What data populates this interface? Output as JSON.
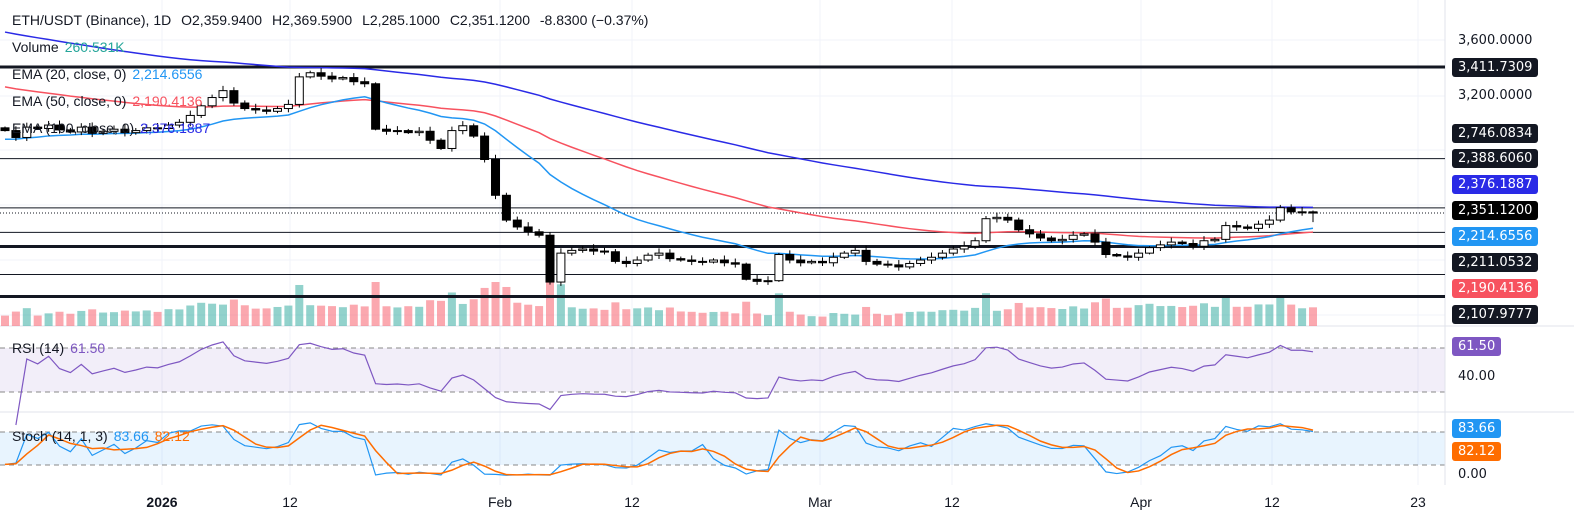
{
  "header": {
    "symbol": "ETH/USDT (Binance), 1D",
    "open": "O2,359.9400",
    "high": "H2,369.5900",
    "low": "L2,285.1000",
    "close": "C2,351.1200",
    "change": "-8.8300 (−0.37%)"
  },
  "legend": {
    "volume": {
      "label": "Volume",
      "value": "260.531K",
      "color": "#26a69a"
    },
    "ema20": {
      "label": "EMA (20, close, 0)",
      "value": "2,214.6556",
      "color": "#2196f3"
    },
    "ema50": {
      "label": "EMA (50, close, 0)",
      "value": "2,190.4136",
      "color": "#f7525f"
    },
    "ema100": {
      "label": "EMA (100, close, 0)",
      "value": "2,376.1887",
      "color": "#2a2ae6"
    },
    "rsi": {
      "label": "RSI (14)",
      "value": "61.50",
      "color": "#7e57c2"
    },
    "stoch": {
      "label": "Stoch (14, 1, 3)",
      "k": "83.66",
      "d": "82.12",
      "k_color": "#2196f3",
      "d_color": "#ff6d00"
    }
  },
  "price_axis": {
    "ticks": [
      "3,600.0000",
      "3,200.0000"
    ],
    "tags": [
      {
        "text": "3,411.7309",
        "bg": "#131722"
      },
      {
        "text": "2,746.0834",
        "bg": "#131722"
      },
      {
        "text": "2,388.6060",
        "bg": "#131722"
      },
      {
        "text": "2,376.1887",
        "bg": "#2a2ae6"
      },
      {
        "text": "2,351.1200",
        "bg": "#000000"
      },
      {
        "text": "2,214.6556",
        "bg": "#2196f3"
      },
      {
        "text": "2,211.0532",
        "bg": "#131722"
      },
      {
        "text": "2,190.4136",
        "bg": "#f7525f"
      },
      {
        "text": "2,107.9777",
        "bg": "#131722"
      }
    ]
  },
  "rsi_axis": {
    "tick": "40.00",
    "tag": "61.50"
  },
  "stoch_axis": {
    "tick": "0.00",
    "tag_k": "83.66",
    "tag_d": "82.12"
  },
  "levels": [
    3411.7309,
    2746.0834,
    2388.606,
    2211.0532,
    2107.9777,
    1905,
    1745
  ],
  "time_axis": [
    "2026",
    "12",
    "Feb",
    "12",
    "Mar",
    "12",
    "Apr",
    "12",
    "23"
  ],
  "chart_data": {
    "type": "candlestick",
    "scale": "linear",
    "first_date": "Dec 17",
    "closes": [
      2950,
      2900,
      2975,
      2965,
      2990,
      2955,
      2940,
      2975,
      2930,
      2945,
      2960,
      2935,
      2950,
      2970,
      2965,
      2990,
      3010,
      3060,
      3130,
      3190,
      3240,
      3150,
      3110,
      3100,
      3090,
      3110,
      3140,
      3340,
      3370,
      3345,
      3325,
      3335,
      3305,
      3290,
      2960,
      2945,
      2950,
      2935,
      2945,
      2880,
      2820,
      2950,
      2985,
      2910,
      2740,
      2480,
      2300,
      2250,
      2215,
      2190,
      1850,
      2060,
      2080,
      2090,
      2075,
      2070,
      2000,
      1985,
      2010,
      2045,
      2060,
      2020,
      2010,
      2000,
      1995,
      2010,
      1990,
      1980,
      1870,
      1855,
      1860,
      2050,
      2010,
      1990,
      2000,
      1990,
      2030,
      2060,
      2080,
      2000,
      1980,
      1975,
      1960,
      1985,
      2010,
      2030,
      2060,
      2090,
      2110,
      2150,
      2310,
      2320,
      2300,
      2230,
      2200,
      2170,
      2150,
      2160,
      2190,
      2200,
      2140,
      2050,
      2040,
      2030,
      2060,
      2100,
      2120,
      2140,
      2130,
      2110,
      2150,
      2160,
      2260,
      2250,
      2240,
      2270,
      2300,
      2390,
      2360,
      2360,
      2351.12
    ],
    "last": {
      "open": 2359.94,
      "high": 2369.59,
      "low": 2285.1,
      "close": 2351.12
    },
    "ylim": [
      1700,
      3700
    ]
  }
}
